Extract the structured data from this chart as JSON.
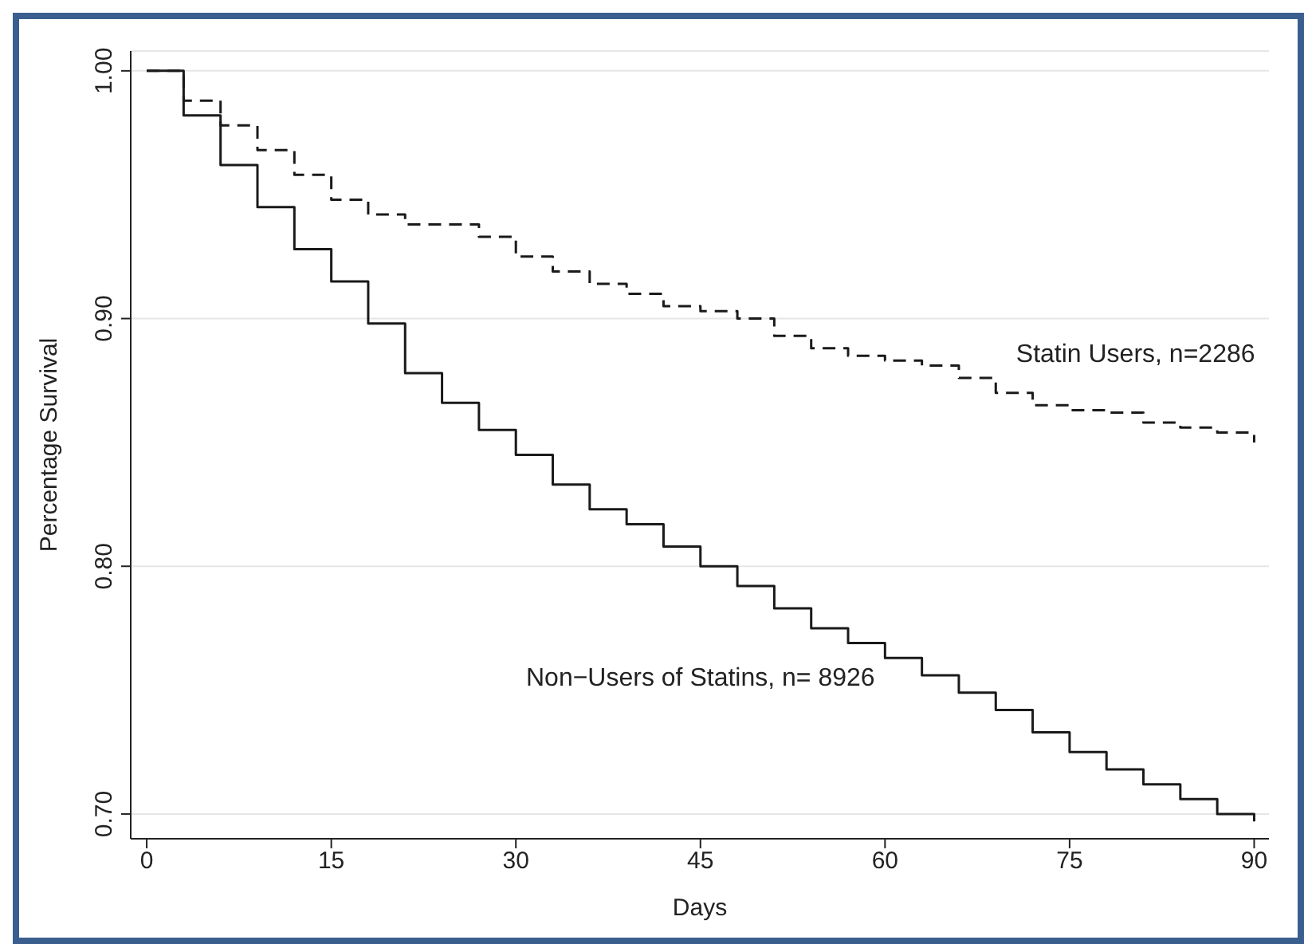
{
  "chart_data": {
    "type": "step",
    "xlabel": "Days",
    "ylabel": "Percentage Survival",
    "x": [
      0,
      3,
      6,
      9,
      12,
      15,
      18,
      21,
      24,
      27,
      30,
      33,
      36,
      39,
      42,
      45,
      48,
      51,
      54,
      57,
      60,
      63,
      66,
      69,
      72,
      75,
      78,
      81,
      84,
      87,
      90
    ],
    "series": [
      {
        "name": "Statin Users, n=2286",
        "color": "#1a1a1a",
        "line_style": "dashed",
        "values": [
          1.0,
          0.988,
          0.978,
          0.968,
          0.958,
          0.948,
          0.942,
          0.938,
          0.938,
          0.933,
          0.925,
          0.919,
          0.914,
          0.91,
          0.905,
          0.903,
          0.9,
          0.893,
          0.888,
          0.885,
          0.883,
          0.881,
          0.876,
          0.87,
          0.865,
          0.863,
          0.862,
          0.858,
          0.856,
          0.854,
          0.85
        ]
      },
      {
        "name": "Non−Users of Statins, n= 8926",
        "color": "#1a1a1a",
        "line_style": "solid",
        "values": [
          1.0,
          0.982,
          0.962,
          0.945,
          0.928,
          0.915,
          0.898,
          0.878,
          0.866,
          0.855,
          0.845,
          0.833,
          0.823,
          0.817,
          0.808,
          0.8,
          0.792,
          0.783,
          0.775,
          0.769,
          0.763,
          0.756,
          0.749,
          0.742,
          0.733,
          0.725,
          0.718,
          0.712,
          0.706,
          0.7,
          0.697
        ]
      }
    ],
    "xlim": [
      -1.3,
      91.2
    ],
    "xticks": [
      0,
      15,
      30,
      45,
      60,
      75,
      90
    ],
    "ylim": [
      0.69,
      1.008
    ],
    "yticks": [
      {
        "value": 0.7,
        "label": "0.70"
      },
      {
        "value": 0.8,
        "label": "0.80"
      },
      {
        "value": 0.9,
        "label": "0.90"
      },
      {
        "value": 1.0,
        "label": "1.00"
      }
    ],
    "grid": "y",
    "legend": false,
    "marker": "none"
  }
}
